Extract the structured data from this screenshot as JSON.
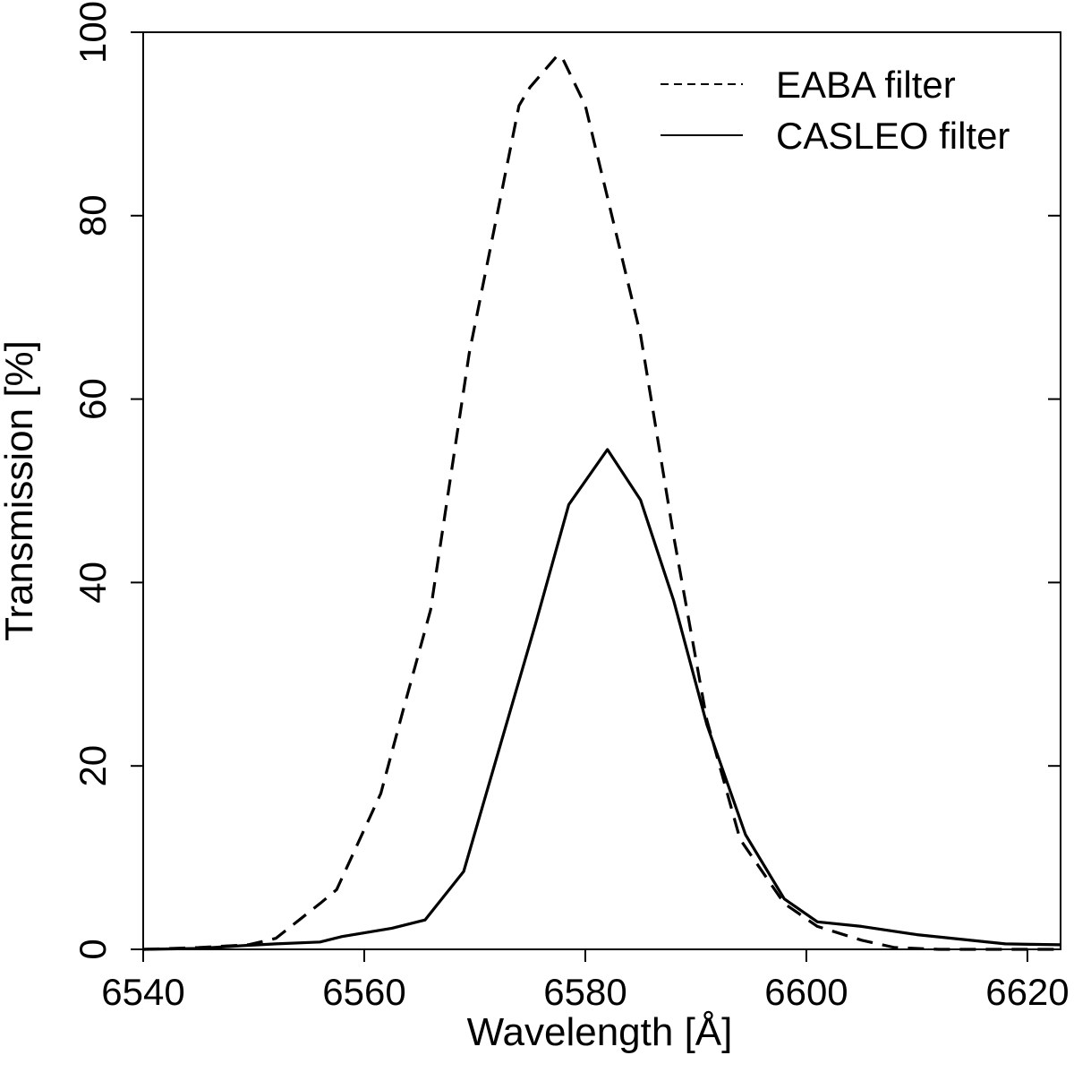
{
  "chart_data": {
    "type": "line",
    "title": "",
    "xlabel": "Wavelength [Å]",
    "ylabel": "Transmission [%]",
    "xlim": [
      6540,
      6623
    ],
    "ylim": [
      0,
      100
    ],
    "x_ticks": [
      6540,
      6560,
      6580,
      6600,
      6620
    ],
    "y_ticks": [
      0,
      20,
      40,
      60,
      80,
      100
    ],
    "grid": false,
    "legend_position": "top-right",
    "series": [
      {
        "name": "EABA filter",
        "style": "dashed",
        "x": [
          6540,
          6545,
          6549.5,
          6552,
          6556,
          6557.5,
          6561.5,
          6563.5,
          6566,
          6569.5,
          6572,
          6574,
          6575,
          6577.5,
          6578,
          6580,
          6582,
          6585,
          6588,
          6591,
          6594,
          6598,
          6601,
          6605,
          6608,
          6612,
          6618,
          6623
        ],
        "y": [
          0,
          0.2,
          0.5,
          1.2,
          5,
          6.5,
          17,
          26,
          37,
          65,
          80,
          92,
          94,
          97.5,
          97,
          92,
          82,
          67,
          45,
          25,
          12,
          5,
          2.5,
          1,
          0.2,
          0,
          0,
          0
        ]
      },
      {
        "name": "CASLEO filter",
        "style": "solid",
        "x": [
          6540,
          6545,
          6549,
          6552,
          6556,
          6558,
          6562.5,
          6565.5,
          6569,
          6572,
          6575.5,
          6578.5,
          6582,
          6585,
          6588,
          6591,
          6594.5,
          6598,
          6601,
          6605,
          6610,
          6618,
          6623
        ],
        "y": [
          0,
          0.1,
          0.4,
          0.6,
          0.8,
          1.4,
          2.3,
          3.2,
          8.5,
          21,
          35.5,
          48.5,
          54.5,
          49,
          38,
          24.5,
          12.5,
          5.5,
          3,
          2.5,
          1.6,
          0.6,
          0.5
        ]
      }
    ]
  }
}
